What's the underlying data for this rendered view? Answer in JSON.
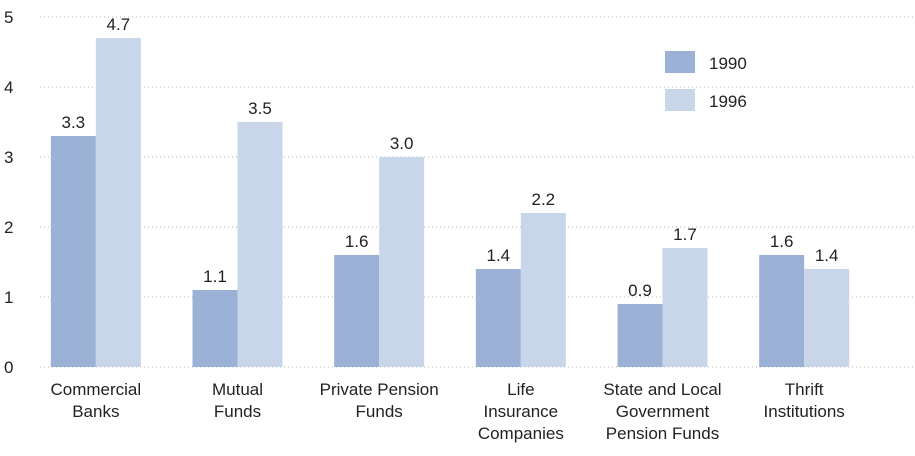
{
  "chart_data": {
    "type": "bar",
    "categories": [
      "Commercial\nBanks",
      "Mutual\nFunds",
      "Private Pension\nFunds",
      "Life\nInsurance\nCompanies",
      "State and Local\nGovernment\nPension Funds",
      "Thrift\nInstitutions"
    ],
    "series": [
      {
        "name": "1990",
        "color": "#9bb1d5",
        "values": [
          3.3,
          1.1,
          1.6,
          1.4,
          0.9,
          1.6
        ],
        "value_labels": [
          "3.3",
          "1.1",
          "1.6",
          "1.4",
          "0.9",
          "1.6"
        ]
      },
      {
        "name": "1996",
        "color": "#c9d5e9",
        "values": [
          4.7,
          3.5,
          3.0,
          2.2,
          1.7,
          1.4
        ],
        "value_labels": [
          "4.7",
          "3.5",
          "3.0",
          "2.2",
          "1.7",
          "1.4"
        ]
      }
    ],
    "ylim": [
      0,
      5
    ],
    "yticks": [
      0,
      1,
      2,
      3,
      4,
      5
    ],
    "grid": true,
    "legend": "upper right"
  }
}
